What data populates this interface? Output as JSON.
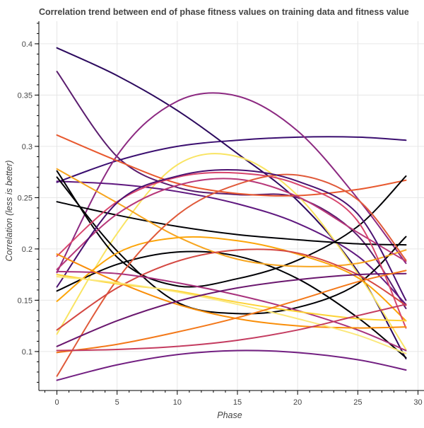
{
  "chart_data": {
    "type": "line",
    "title": "Correlation trend between end of phase fitness values on training data and fitness value",
    "xlabel": "Phase",
    "ylabel": "Correlation (less is better)",
    "xlim": [
      -1.5,
      30.5
    ],
    "ylim": [
      0.062,
      0.422
    ],
    "x_ticks": [
      0,
      5,
      10,
      15,
      20,
      25,
      30
    ],
    "y_ticks": [
      0.1,
      0.15,
      0.2,
      0.25,
      0.3,
      0.35,
      0.4
    ],
    "x_tick_labels": [
      "0",
      "5",
      "10",
      "15",
      "20",
      "25",
      "30"
    ],
    "y_tick_labels": [
      "0.1",
      "0.15",
      "0.2",
      "0.25",
      "0.3",
      "0.35",
      "0.4"
    ],
    "grid": true,
    "x": [
      0,
      5,
      10,
      15,
      20,
      25,
      29
    ],
    "series": [
      {
        "color": "#2c0a5e",
        "values": [
          0.396,
          0.369,
          0.335,
          0.293,
          0.247,
          0.178,
          0.093
        ]
      },
      {
        "color": "#5a1c6e",
        "values": [
          0.373,
          0.29,
          0.26,
          0.253,
          0.25,
          0.213,
          0.142
        ]
      },
      {
        "color": "#3b0f70",
        "values": [
          0.265,
          0.286,
          0.3,
          0.306,
          0.309,
          0.309,
          0.306
        ]
      },
      {
        "color": "#8c2981",
        "values": [
          0.177,
          0.291,
          0.344,
          0.349,
          0.315,
          0.249,
          0.186
        ]
      },
      {
        "color": "#f9e462",
        "values": [
          0.117,
          0.215,
          0.282,
          0.29,
          0.252,
          0.176,
          0.102
        ]
      },
      {
        "color": "#e8592f",
        "values": [
          0.311,
          0.286,
          0.264,
          0.254,
          0.252,
          0.258,
          0.267
        ]
      },
      {
        "color": "#5f187f",
        "values": [
          0.266,
          0.263,
          0.256,
          0.244,
          0.225,
          0.193,
          0.146
        ]
      },
      {
        "color": "#000004",
        "values": [
          0.246,
          0.233,
          0.222,
          0.214,
          0.209,
          0.205,
          0.204
        ]
      },
      {
        "color": "#000004",
        "values": [
          0.276,
          0.192,
          0.164,
          0.171,
          0.189,
          0.222,
          0.271
        ]
      },
      {
        "color": "#000004",
        "values": [
          0.27,
          0.198,
          0.148,
          0.137,
          0.143,
          0.166,
          0.212
        ]
      },
      {
        "color": "#000004",
        "values": [
          0.159,
          0.185,
          0.197,
          0.193,
          0.171,
          0.133,
          0.094
        ]
      },
      {
        "color": "#f7a51f",
        "values": [
          0.278,
          0.245,
          0.212,
          0.19,
          0.183,
          0.186,
          0.199
        ]
      },
      {
        "color": "#fca50a",
        "values": [
          0.149,
          0.196,
          0.211,
          0.208,
          0.195,
          0.172,
          0.13
        ]
      },
      {
        "color": "#b73779",
        "values": [
          0.18,
          0.234,
          0.262,
          0.268,
          0.251,
          0.216,
          0.188
        ]
      },
      {
        "color": "#d8456c",
        "values": [
          0.193,
          0.246,
          0.27,
          0.274,
          0.263,
          0.227,
          0.123
        ]
      },
      {
        "color": "#e05a3a",
        "values": [
          0.076,
          0.17,
          0.233,
          0.263,
          0.272,
          0.248,
          0.189
        ]
      },
      {
        "color": "#4a1170",
        "values": [
          0.163,
          0.245,
          0.271,
          0.277,
          0.266,
          0.234,
          0.15
        ]
      },
      {
        "color": "#d44842",
        "values": [
          0.121,
          0.162,
          0.188,
          0.199,
          0.196,
          0.175,
          0.145
        ]
      },
      {
        "color": "#a8327d",
        "values": [
          0.178,
          0.176,
          0.167,
          0.155,
          0.14,
          0.121,
          0.101
        ]
      },
      {
        "color": "#fdd234",
        "values": [
          0.175,
          0.166,
          0.159,
          0.148,
          0.139,
          0.132,
          0.13
        ]
      },
      {
        "color": "#f98e09",
        "values": [
          0.195,
          0.168,
          0.146,
          0.132,
          0.125,
          0.123,
          0.124
        ]
      },
      {
        "color": "#fbe87a",
        "values": [
          0.173,
          0.167,
          0.158,
          0.146,
          0.132,
          0.116,
          0.098
        ]
      },
      {
        "color": "#6a176e",
        "values": [
          0.105,
          0.13,
          0.149,
          0.162,
          0.17,
          0.175,
          0.176
        ]
      },
      {
        "color": "#f37819",
        "values": [
          0.099,
          0.107,
          0.119,
          0.133,
          0.15,
          0.168,
          0.179
        ]
      },
      {
        "color": "#c43c60",
        "values": [
          0.101,
          0.102,
          0.105,
          0.111,
          0.121,
          0.135,
          0.146
        ]
      },
      {
        "color": "#721f81",
        "values": [
          0.072,
          0.087,
          0.097,
          0.101,
          0.099,
          0.092,
          0.082
        ]
      }
    ]
  }
}
